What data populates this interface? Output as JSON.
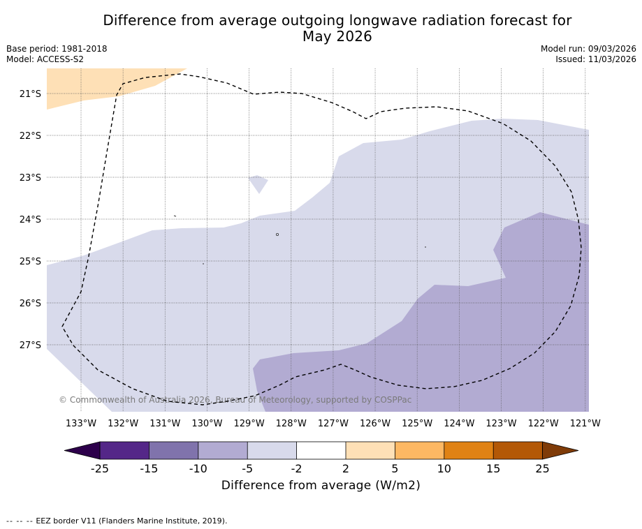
{
  "title": {
    "line1": "Difference from average outgoing longwave radiation forecast for",
    "line2": "May 2026"
  },
  "meta": {
    "base_period": "Base period: 1981-2018",
    "model": "Model: ACCESS-S2",
    "model_run": "Model run: 09/03/2026",
    "issued": "Issued: 11/03/2026"
  },
  "map": {
    "lat_labels": [
      "21°S",
      "22°S",
      "23°S",
      "24°S",
      "25°S",
      "26°S",
      "27°S"
    ],
    "lon_labels": [
      "133°W",
      "132°W",
      "131°W",
      "130°W",
      "129°W",
      "128°W",
      "127°W",
      "126°W",
      "125°W",
      "124°W",
      "123°W",
      "122°W",
      "121°W"
    ],
    "copyright": "© Commonwealth of Australia 2026, Bureau of Meteorology, supported by COSPPac"
  },
  "colorbar": {
    "ticks": [
      "-25",
      "-15",
      "-10",
      "-5",
      "-2",
      "2",
      "5",
      "10",
      "15",
      "25"
    ],
    "colors": {
      "under": "#2d004b",
      "bins": [
        "#542788",
        "#8073ac",
        "#b2abd2",
        "#d8daeb",
        "#ffffff",
        "#fee0b6",
        "#fdb863",
        "#e08214",
        "#b35806"
      ],
      "over": "#7f3b08"
    },
    "label": "Difference from average (W/m2)"
  },
  "legend": {
    "eez_dash": "-- -- --",
    "eez_text": "EEZ border V11 (Flanders Marine Institute, 2019)."
  },
  "colors": {
    "light_purple": "#d8daeb",
    "mid_purple": "#b2abd2",
    "light_orange": "#fee0b6",
    "grid": "#555555"
  }
}
